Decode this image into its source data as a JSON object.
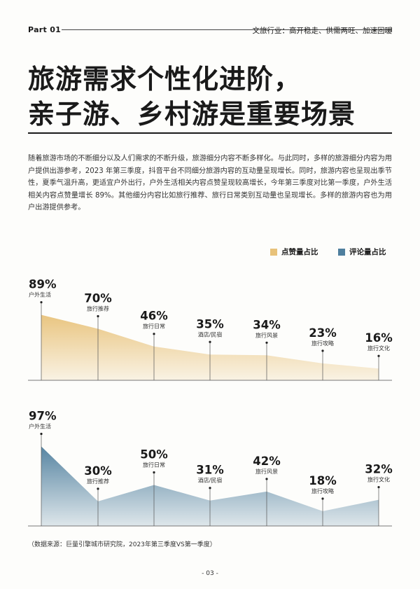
{
  "header": {
    "part": "Part 01",
    "section": "文旅行业：高开稳走、供需两旺、加速回暖"
  },
  "title": {
    "line1": "旅游需求个性化进阶，",
    "line2": "亲子游、乡村游是重要场景"
  },
  "body": {
    "paragraph": "随着旅游市场的不断细分以及人们需求的不断升级，旅游细分内容不断多样化。与此同时，多样的旅游细分内容为用户提供出游参考，2023 年第三季度，抖音平台不同细分旅游内容的互动量呈现增长。同时，旅游内容也呈现出季节性，夏季气温升高，更适宜户外出行，户外生活相关内容点赞呈现较高增长，今年第三季度对比第一季度，户外生活相关内容点赞量增长 89%。其他细分内容比如旅行推荐、旅行日常类别互动量也呈现增长。多样的旅游内容也为用户出游提供参考。"
  },
  "colors": {
    "likes": "#e8c27a",
    "comments": "#4f7f9e"
  },
  "chart_data": [
    {
      "type": "area",
      "series": [
        {
          "name": "点赞量占比",
          "values": [
            89,
            70,
            46,
            35,
            34,
            23,
            16
          ]
        }
      ],
      "categories": [
        "户外生活",
        "旅行推荐",
        "旅行日常",
        "酒店/民宿",
        "旅行风景",
        "旅行攻略",
        "旅行文化"
      ],
      "labels": [
        "89%",
        "70%",
        "46%",
        "35%",
        "34%",
        "23%",
        "16%"
      ]
    },
    {
      "type": "area",
      "series": [
        {
          "name": "评论量占比",
          "values": [
            97,
            30,
            50,
            31,
            42,
            18,
            32
          ]
        }
      ],
      "categories": [
        "户外生活",
        "旅行推荐",
        "旅行日常",
        "酒店/民宿",
        "旅行风景",
        "旅行攻略",
        "旅行文化"
      ],
      "labels": [
        "97%",
        "30%",
        "50%",
        "31%",
        "42%",
        "18%",
        "32%"
      ]
    }
  ],
  "legend": {
    "likes": "点赞量占比",
    "comments": "评论量占比"
  },
  "footnote": "（数据来源：巨量引擎城市研究院，2023年第三季度VS第一季度）",
  "page_number": "- 03 -"
}
